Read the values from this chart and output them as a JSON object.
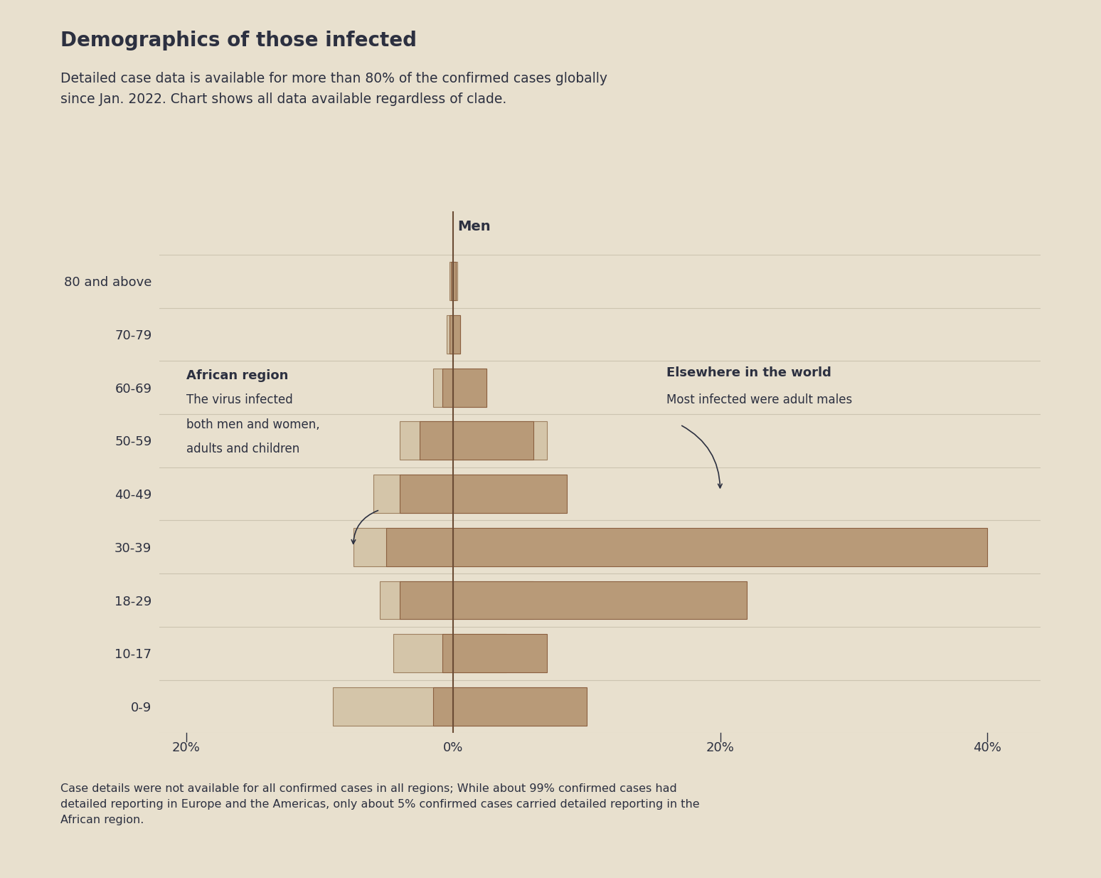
{
  "title": "Demographics of those infected",
  "subtitle": "Detailed case data is available for more than 80% of the confirmed cases globally\nsince Jan. 2022. Chart shows all data available regardless of clade.",
  "footnote": "Case details were not available for all confirmed cases in all regions; While about 99% confirmed cases had\ndetailed reporting in Europe and the Americas, only about 5% confirmed cases carried detailed reporting in the\nAfrican region.",
  "age_groups": [
    "80 and above",
    "70-79",
    "60-69",
    "50-59",
    "40-49",
    "30-39",
    "18-29",
    "10-17",
    "0-9"
  ],
  "african_women": [
    0.3,
    0.5,
    1.5,
    4.0,
    6.0,
    7.5,
    5.5,
    4.5,
    9.0
  ],
  "african_men": [
    0.3,
    0.5,
    2.5,
    7.0,
    8.0,
    8.0,
    6.0,
    4.0,
    8.0
  ],
  "world_women": [
    0.2,
    0.3,
    0.8,
    2.5,
    4.0,
    5.0,
    4.0,
    0.8,
    1.5
  ],
  "world_men": [
    0.2,
    0.5,
    2.5,
    6.0,
    8.5,
    40.0,
    22.0,
    7.0,
    10.0
  ],
  "xlim": [
    -22,
    44
  ],
  "xticks": [
    -20,
    0,
    20,
    40
  ],
  "xticklabels": [
    "20%",
    "0%",
    "20%",
    "40%"
  ],
  "background_color": "#e8e0ce",
  "bar_africa_fill": "#d4c5a9",
  "bar_africa_edge": "#9e8060",
  "bar_world_fill": "#b89a78",
  "bar_world_edge": "#8b6040",
  "grid_color": "#ccc4b0",
  "text_color": "#2c3040",
  "center_line_color": "#6b4c35"
}
